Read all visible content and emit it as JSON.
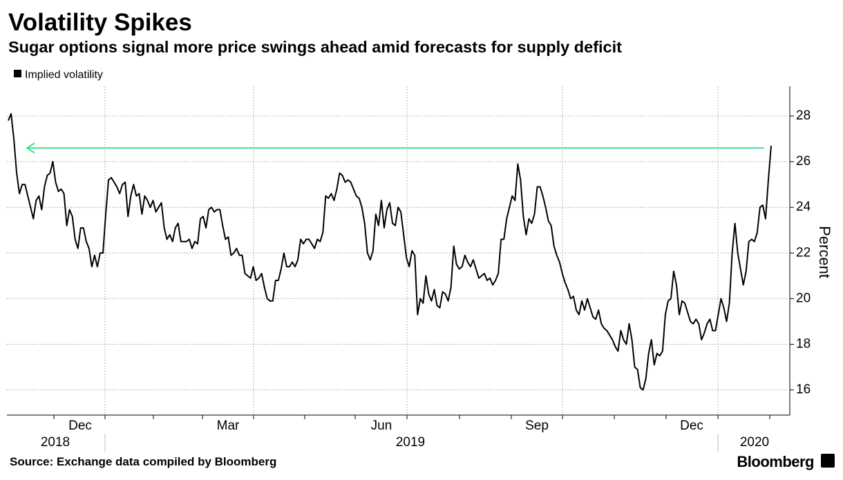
{
  "chart_data": {
    "type": "line",
    "title": "Volatility Spikes",
    "subtitle": "Sugar options signal more price swings ahead amid forecasts for supply deficit",
    "y_label": "Percent",
    "source": "Source: Exchange data compiled by Bloomberg",
    "brand": "Bloomberg",
    "month_labels": [
      "Dec",
      "Mar",
      "Jun",
      "Sep",
      "Dec"
    ],
    "year_labels": [
      "2018",
      "2019",
      "2020"
    ],
    "ylim": [
      14.9,
      29.3
    ],
    "yticks": [
      16,
      18,
      20,
      22,
      24,
      26,
      28
    ],
    "grid": true,
    "reference_line": {
      "value": 26.6,
      "color": "#3be38b"
    },
    "series": [
      {
        "name": "Implied volatility",
        "color": "#000000",
        "values": [
          27.8,
          28.1,
          27.0,
          25.5,
          24.6,
          25.0,
          25.0,
          24.5,
          24.0,
          23.5,
          24.3,
          24.5,
          23.9,
          24.9,
          25.4,
          25.5,
          26.0,
          25.1,
          24.7,
          24.8,
          24.6,
          23.2,
          23.9,
          23.6,
          22.6,
          22.2,
          23.1,
          23.1,
          22.5,
          22.2,
          21.4,
          21.9,
          21.4,
          22.0,
          22.0,
          23.7,
          25.2,
          25.3,
          25.1,
          24.9,
          24.6,
          25.0,
          25.1,
          23.6,
          24.5,
          25.0,
          24.5,
          24.6,
          23.7,
          24.5,
          24.3,
          24.0,
          24.3,
          23.8,
          24.0,
          24.2,
          23.1,
          22.6,
          22.8,
          22.5,
          23.1,
          23.3,
          22.5,
          22.5,
          22.5,
          22.6,
          22.2,
          22.5,
          22.4,
          23.5,
          23.6,
          23.1,
          23.9,
          24.0,
          23.8,
          23.9,
          23.9,
          23.2,
          22.6,
          22.7,
          21.9,
          22.0,
          22.2,
          21.9,
          21.9,
          21.1,
          21.0,
          20.9,
          21.4,
          20.8,
          20.9,
          21.1,
          20.5,
          20.0,
          19.9,
          19.9,
          20.8,
          20.8,
          21.3,
          22.0,
          21.4,
          21.4,
          21.6,
          21.4,
          21.7,
          22.6,
          22.4,
          22.6,
          22.6,
          22.4,
          22.2,
          22.6,
          22.5,
          22.9,
          24.5,
          24.4,
          24.6,
          24.3,
          24.8,
          25.5,
          25.4,
          25.1,
          25.2,
          25.1,
          24.8,
          24.5,
          24.4,
          24.0,
          23.3,
          22.0,
          21.7,
          22.1,
          23.7,
          23.2,
          24.3,
          23.1,
          23.9,
          24.2,
          23.3,
          23.2,
          24.0,
          23.8,
          22.8,
          21.8,
          21.4,
          22.1,
          21.9,
          19.3,
          20.0,
          19.8,
          21.0,
          20.2,
          19.9,
          20.4,
          19.7,
          19.6,
          20.3,
          20.2,
          19.9,
          20.5,
          22.3,
          21.5,
          21.3,
          21.4,
          21.9,
          21.6,
          21.4,
          21.7,
          21.3,
          20.9,
          21.0,
          21.1,
          20.8,
          20.9,
          20.6,
          20.8,
          21.1,
          22.6,
          22.6,
          23.5,
          24.0,
          24.5,
          24.3,
          25.9,
          25.2,
          23.6,
          22.8,
          23.5,
          23.3,
          23.7,
          24.9,
          24.9,
          24.5,
          24.0,
          23.4,
          23.2,
          22.3,
          21.9,
          21.6,
          21.1,
          20.7,
          20.4,
          20.0,
          20.1,
          19.5,
          19.3,
          19.9,
          19.5,
          20.0,
          19.6,
          19.2,
          19.1,
          19.5,
          18.9,
          18.7,
          18.6,
          18.4,
          18.2,
          17.9,
          17.7,
          18.6,
          18.2,
          18.0,
          18.9,
          18.2,
          17.0,
          16.9,
          16.1,
          16.0,
          16.5,
          17.6,
          18.2,
          17.1,
          17.6,
          17.5,
          17.7,
          19.3,
          19.9,
          20.0,
          21.2,
          20.6,
          19.3,
          19.9,
          19.8,
          19.4,
          19.0,
          18.9,
          19.1,
          18.9,
          18.2,
          18.5,
          18.9,
          19.1,
          18.6,
          18.6,
          19.3,
          20.0,
          19.6,
          19.0,
          19.8,
          22.0,
          23.3,
          22.0,
          21.3,
          20.6,
          21.2,
          22.5,
          22.6,
          22.5,
          22.9,
          24.0,
          24.1,
          23.5,
          25.2,
          26.7
        ]
      }
    ]
  }
}
